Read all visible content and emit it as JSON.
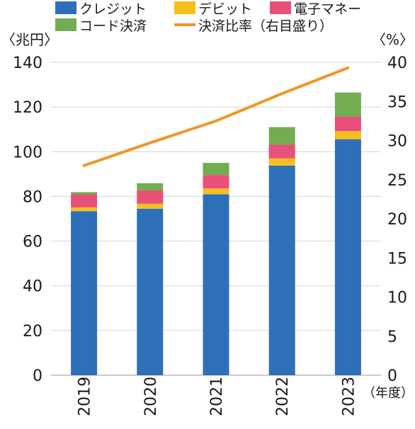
{
  "chart_data": {
    "type": "bar",
    "stacked": true,
    "categories": [
      "2019",
      "2020",
      "2021",
      "2022",
      "2023"
    ],
    "series": [
      {
        "name": "クレジット",
        "color": "#2e6fba",
        "values": [
          73.4,
          74.5,
          81.0,
          93.8,
          105.6
        ]
      },
      {
        "name": "デビット",
        "color": "#f7bf1c",
        "values": [
          1.7,
          2.2,
          2.6,
          3.2,
          3.6
        ]
      },
      {
        "name": "電子マネー",
        "color": "#e8507a",
        "values": [
          5.8,
          6.0,
          6.0,
          6.1,
          6.4
        ]
      },
      {
        "name": "コード決済",
        "color": "#72ad52",
        "values": [
          1.0,
          3.2,
          5.4,
          7.9,
          10.9
        ]
      }
    ],
    "line": {
      "name": "決済比率（右目盛り）",
      "color": "#f0962a",
      "values": [
        26.8,
        29.7,
        32.5,
        36.0,
        39.3
      ]
    },
    "left_axis": {
      "label": "〈兆円〉",
      "ylim": [
        0,
        140
      ],
      "ticks": [
        0,
        20,
        40,
        60,
        80,
        100,
        120,
        140
      ]
    },
    "right_axis": {
      "label": "〈%〉",
      "ylim": [
        0,
        40
      ],
      "ticks": [
        0,
        5,
        10,
        15,
        20,
        25,
        30,
        35,
        40
      ]
    },
    "x_unit": "（年度）",
    "legend_position": "top"
  }
}
